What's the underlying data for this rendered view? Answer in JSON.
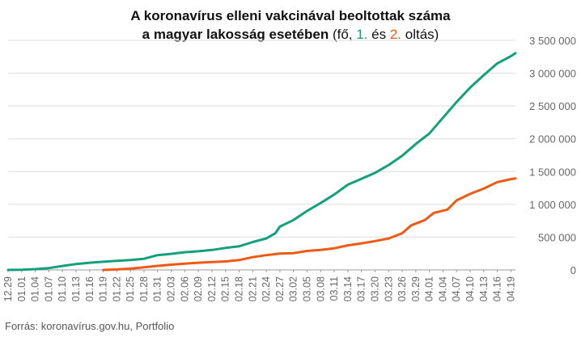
{
  "title": {
    "line1": "A koronavírus elleni vakcinával beoltottak száma",
    "line2_bold": "a magyar lakosság esetében",
    "line2_open": " (fő, ",
    "series1_label": "1.",
    "line2_and": " és ",
    "series2_label": "2.",
    "line2_close": " oltás)"
  },
  "source": "Forrás: koronavírus.gov.hu, Portfolio",
  "colors": {
    "series1": "#13a07a",
    "series2": "#ee5a14",
    "grid": "#dddddd",
    "axis": "#666666"
  },
  "chart_data": {
    "type": "line",
    "title": "A koronavírus elleni vakcinával beoltottak száma a magyar lakosság esetében (fő, 1. és 2. oltás)",
    "ylim": [
      0,
      3500000
    ],
    "yticks": [
      0,
      500000,
      1000000,
      1500000,
      2000000,
      2500000,
      3000000,
      3500000
    ],
    "ytick_labels": [
      "0",
      "500 000",
      "1 000 000",
      "1 500 000",
      "2 000 000",
      "2 500 000",
      "3 000 000",
      "3 500 000"
    ],
    "y_axis_side": "right",
    "grid": true,
    "xtick_labels": [
      "12.29",
      "01.01",
      "01.04",
      "01.07",
      "01.10",
      "01.13",
      "01.16",
      "01.19",
      "01.22",
      "01.25",
      "01.28",
      "01.31",
      "02.03",
      "02.06",
      "02.09",
      "02.12",
      "02.15",
      "02.18",
      "02.21",
      "02.24",
      "02.27",
      "03.02",
      "03.05",
      "03.08",
      "03.11",
      "03.14",
      "03.17",
      "03.20",
      "03.23",
      "03.26",
      "03.29",
      "04.01",
      "04.04",
      "04.07",
      "04.10",
      "04.13",
      "04.16",
      "04.19"
    ],
    "xtick_dates": [
      "2020-12-29",
      "2021-01-01",
      "2021-01-04",
      "2021-01-07",
      "2021-01-10",
      "2021-01-13",
      "2021-01-16",
      "2021-01-19",
      "2021-01-22",
      "2021-01-25",
      "2021-01-28",
      "2021-01-31",
      "2021-02-03",
      "2021-02-06",
      "2021-02-09",
      "2021-02-12",
      "2021-02-15",
      "2021-02-18",
      "2021-02-21",
      "2021-02-24",
      "2021-02-27",
      "2021-03-02",
      "2021-03-05",
      "2021-03-08",
      "2021-03-11",
      "2021-03-14",
      "2021-03-17",
      "2021-03-20",
      "2021-03-23",
      "2021-03-26",
      "2021-03-29",
      "2021-04-01",
      "2021-04-04",
      "2021-04-07",
      "2021-04-10",
      "2021-04-13",
      "2021-04-16",
      "2021-04-19"
    ],
    "x_range": [
      "2020-12-29",
      "2021-04-20"
    ],
    "series": [
      {
        "name": "1.",
        "color": "#13a07a",
        "points": [
          [
            "2020-12-29",
            0
          ],
          [
            "2021-01-01",
            4000
          ],
          [
            "2021-01-04",
            12000
          ],
          [
            "2021-01-07",
            28000
          ],
          [
            "2021-01-10",
            60000
          ],
          [
            "2021-01-13",
            90000
          ],
          [
            "2021-01-16",
            110000
          ],
          [
            "2021-01-19",
            125000
          ],
          [
            "2021-01-22",
            138000
          ],
          [
            "2021-01-25",
            150000
          ],
          [
            "2021-01-28",
            170000
          ],
          [
            "2021-01-31",
            225000
          ],
          [
            "2021-02-03",
            245000
          ],
          [
            "2021-02-06",
            270000
          ],
          [
            "2021-02-09",
            285000
          ],
          [
            "2021-02-12",
            305000
          ],
          [
            "2021-02-15",
            335000
          ],
          [
            "2021-02-18",
            360000
          ],
          [
            "2021-02-21",
            425000
          ],
          [
            "2021-02-24",
            480000
          ],
          [
            "2021-02-26",
            560000
          ],
          [
            "2021-02-27",
            660000
          ],
          [
            "2021-03-02",
            760000
          ],
          [
            "2021-03-05",
            900000
          ],
          [
            "2021-03-08",
            1020000
          ],
          [
            "2021-03-11",
            1150000
          ],
          [
            "2021-03-14",
            1300000
          ],
          [
            "2021-03-17",
            1390000
          ],
          [
            "2021-03-20",
            1480000
          ],
          [
            "2021-03-23",
            1600000
          ],
          [
            "2021-03-26",
            1740000
          ],
          [
            "2021-03-29",
            1920000
          ],
          [
            "2021-04-01",
            2080000
          ],
          [
            "2021-04-04",
            2320000
          ],
          [
            "2021-04-07",
            2560000
          ],
          [
            "2021-04-10",
            2780000
          ],
          [
            "2021-04-13",
            2970000
          ],
          [
            "2021-04-16",
            3150000
          ],
          [
            "2021-04-19",
            3260000
          ],
          [
            "2021-04-20",
            3305000
          ]
        ]
      },
      {
        "name": "2.",
        "color": "#ee5a14",
        "points": [
          [
            "2021-01-19",
            0
          ],
          [
            "2021-01-22",
            8000
          ],
          [
            "2021-01-25",
            20000
          ],
          [
            "2021-01-28",
            40000
          ],
          [
            "2021-01-31",
            62000
          ],
          [
            "2021-02-03",
            80000
          ],
          [
            "2021-02-06",
            95000
          ],
          [
            "2021-02-09",
            110000
          ],
          [
            "2021-02-12",
            120000
          ],
          [
            "2021-02-15",
            130000
          ],
          [
            "2021-02-18",
            150000
          ],
          [
            "2021-02-21",
            195000
          ],
          [
            "2021-02-24",
            225000
          ],
          [
            "2021-02-27",
            250000
          ],
          [
            "2021-03-02",
            255000
          ],
          [
            "2021-03-05",
            290000
          ],
          [
            "2021-03-08",
            305000
          ],
          [
            "2021-03-11",
            330000
          ],
          [
            "2021-03-14",
            375000
          ],
          [
            "2021-03-17",
            405000
          ],
          [
            "2021-03-20",
            440000
          ],
          [
            "2021-03-23",
            480000
          ],
          [
            "2021-03-26",
            560000
          ],
          [
            "2021-03-28",
            680000
          ],
          [
            "2021-03-31",
            760000
          ],
          [
            "2021-04-02",
            870000
          ],
          [
            "2021-04-05",
            920000
          ],
          [
            "2021-04-07",
            1060000
          ],
          [
            "2021-04-10",
            1160000
          ],
          [
            "2021-04-13",
            1240000
          ],
          [
            "2021-04-16",
            1340000
          ],
          [
            "2021-04-19",
            1385000
          ],
          [
            "2021-04-20",
            1395000
          ]
        ]
      }
    ]
  }
}
